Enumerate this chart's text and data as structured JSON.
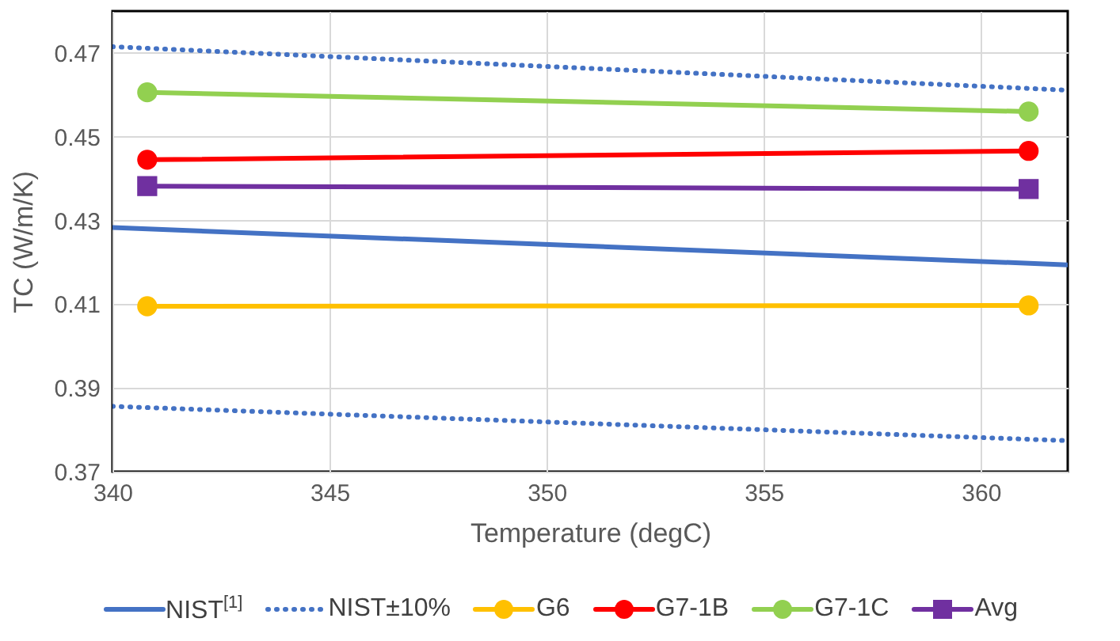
{
  "chart_data": {
    "type": "line",
    "xlabel": "Temperature (degC)",
    "ylabel": "TC (W/m/K)",
    "xlim": [
      340,
      362
    ],
    "xticks": [
      340,
      345,
      350,
      355,
      360
    ],
    "ylim": [
      0.37,
      0.48
    ],
    "yticks": [
      0.37,
      0.39,
      0.41,
      0.43,
      0.45,
      0.47
    ],
    "grid": true,
    "legend": "bottom",
    "series": [
      {
        "name": "NIST$^{[1]}$",
        "color": "#4472c4",
        "x": [
          340,
          362
        ],
        "values": [
          0.4283,
          0.4194
        ],
        "line_style": "solid",
        "marker": "none"
      },
      {
        "name": "NIST±10%",
        "color": "#4472c4",
        "x": [
          340,
          362
        ],
        "values": [
          0.4715,
          0.4611
        ],
        "line_style": "dotted",
        "marker": "none"
      },
      {
        "name": null,
        "color": "#4472c4",
        "x": [
          340,
          362
        ],
        "values": [
          0.3856,
          0.3774
        ],
        "line_style": "dotted",
        "marker": "none"
      },
      {
        "name": "G6",
        "color": "#ffc000",
        "x": [
          340.8,
          361.1
        ],
        "values": [
          0.4095,
          0.4097
        ],
        "line_style": "solid",
        "marker": "circle"
      },
      {
        "name": "G7-1B",
        "color": "#ff0000",
        "x": [
          340.8,
          361.1
        ],
        "values": [
          0.4445,
          0.4466
        ],
        "line_style": "solid",
        "marker": "circle"
      },
      {
        "name": "G7-1C",
        "color": "#92d050",
        "x": [
          340.8,
          361.1
        ],
        "values": [
          0.4606,
          0.456
        ],
        "line_style": "solid",
        "marker": "circle"
      },
      {
        "name": "Avg",
        "color": "#7030a0",
        "x": [
          340.8,
          361.1
        ],
        "values": [
          0.4382,
          0.4375
        ],
        "line_style": "solid",
        "marker": "square"
      }
    ]
  }
}
